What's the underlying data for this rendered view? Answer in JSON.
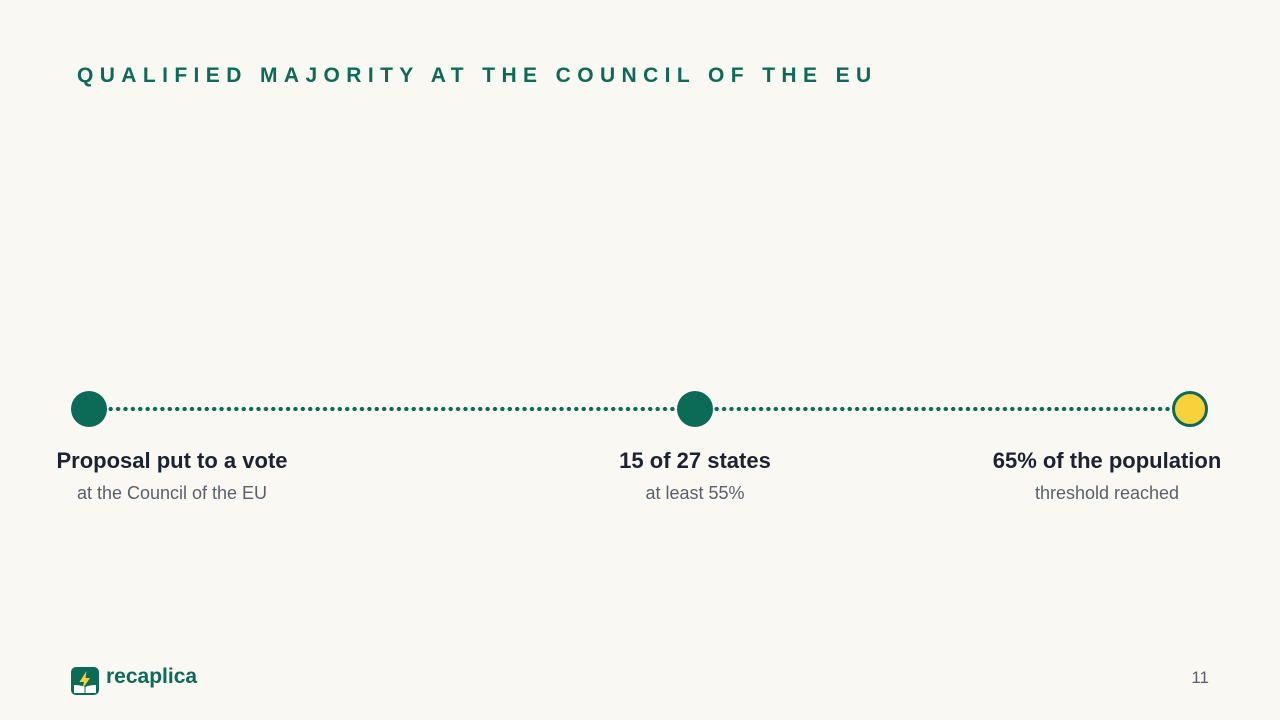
{
  "slide": {
    "title": "QUALIFIED MAJORITY AT THE COUNCIL OF THE EU",
    "page_number": "11"
  },
  "timeline": {
    "steps": [
      {
        "title": "Proposal put to a vote",
        "subtitle": "at the Council of the EU",
        "status": "completed"
      },
      {
        "title": "15 of 27 states",
        "subtitle": "at least 55%",
        "status": "completed"
      },
      {
        "title": "65% of the population",
        "subtitle": "threshold reached",
        "status": "final"
      }
    ]
  },
  "brand": {
    "name": "recaplica",
    "logo_icon": "lightning-book-icon"
  },
  "colors": {
    "background": "#f9f8f3",
    "primary": "#0c6b57",
    "highlight": "#f8d23a",
    "text": "#1c2230",
    "muted": "#5a5f6a"
  }
}
